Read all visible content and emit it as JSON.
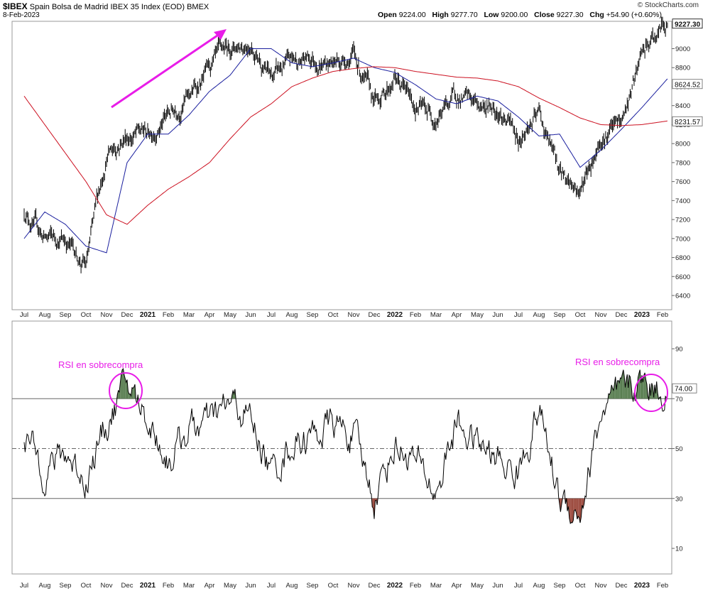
{
  "header": {
    "symbol": "$IBEX",
    "name": "Spain Bolsa de Madrid IBEX 35 Index (EOD)",
    "exchange": "BMEX",
    "date": "8-Feb-2023",
    "open_label": "Open",
    "open": "9224.00",
    "high_label": "High",
    "high": "9277.70",
    "low_label": "Low",
    "low": "9200.00",
    "close_label": "Close",
    "close": "9227.30",
    "chg_label": "Chg",
    "chg": "+54.90 (+0.60%)",
    "brand": "© StockCharts.com"
  },
  "colors": {
    "price": "#000000",
    "ma50": "#1a1f9e",
    "ma200": "#cc1020",
    "annotation": "#e81ce8",
    "rsi_overbought_fill": "#5a7f52",
    "rsi_oversold_fill": "#9c4a3e",
    "grid": "#cccccc"
  },
  "chart_data": [
    {
      "type": "line",
      "panel": "price",
      "y_ticks": [
        "6400",
        "6600",
        "6800",
        "7000",
        "7200",
        "7400",
        "7600",
        "7800",
        "8000",
        "8200",
        "8400",
        "8600",
        "8800",
        "9000"
      ],
      "ylim": [
        6300,
        9350
      ],
      "x_ticks": [
        "Jul",
        "Aug",
        "Sep",
        "Oct",
        "Nov",
        "Dec",
        "2021",
        "Feb",
        "Mar",
        "Apr",
        "May",
        "Jun",
        "Jul",
        "Aug",
        "Sep",
        "Oct",
        "Nov",
        "Dec",
        "2022",
        "Feb",
        "Mar",
        "Apr",
        "May",
        "Jun",
        "Jul",
        "Aug",
        "Sep",
        "Oct",
        "Nov",
        "Dec",
        "2023",
        "Feb"
      ],
      "last_labels": {
        "close": "9227.30",
        "ma50": "8624.52",
        "ma200": "8231.57"
      },
      "series": [
        {
          "name": "close",
          "x": [
            "2020-07",
            "2020-08",
            "2020-09",
            "2020-10",
            "2020-11",
            "2020-12",
            "2021-01",
            "2021-02",
            "2021-03",
            "2021-04",
            "2021-05",
            "2021-06",
            "2021-07",
            "2021-08",
            "2021-09",
            "2021-10",
            "2021-11",
            "2021-12",
            "2022-01",
            "2022-02",
            "2022-03",
            "2022-04",
            "2022-05",
            "2022-06",
            "2022-07",
            "2022-08",
            "2022-09",
            "2022-10",
            "2022-11",
            "2022-12",
            "2023-01",
            "2023-02"
          ],
          "values": [
            7300,
            7000,
            7000,
            6700,
            7900,
            8100,
            8100,
            8300,
            8500,
            8750,
            9000,
            9100,
            8700,
            8850,
            8900,
            8850,
            8950,
            8400,
            8700,
            8400,
            8300,
            8500,
            8400,
            8400,
            8050,
            8300,
            7700,
            7500,
            8100,
            8200,
            8900,
            9227
          ]
        },
        {
          "name": "ma50",
          "x": [
            "2020-07",
            "2020-08",
            "2020-09",
            "2020-10",
            "2020-11",
            "2020-12",
            "2021-01",
            "2021-02",
            "2021-03",
            "2021-04",
            "2021-05",
            "2021-06",
            "2021-07",
            "2021-08",
            "2021-09",
            "2021-10",
            "2021-11",
            "2021-12",
            "2022-01",
            "2022-02",
            "2022-03",
            "2022-04",
            "2022-05",
            "2022-06",
            "2022-07",
            "2022-08",
            "2022-09",
            "2022-10",
            "2022-11",
            "2022-12",
            "2023-01",
            "2023-02"
          ],
          "values": [
            7000,
            7280,
            7150,
            6920,
            6850,
            7800,
            8100,
            8100,
            8300,
            8550,
            8720,
            9000,
            9000,
            8850,
            8810,
            8850,
            8900,
            8800,
            8750,
            8620,
            8470,
            8420,
            8500,
            8450,
            8280,
            8080,
            8100,
            7750,
            7930,
            8150,
            8380,
            8624
          ]
        },
        {
          "name": "ma200",
          "x": [
            "2020-07",
            "2020-08",
            "2020-09",
            "2020-10",
            "2020-11",
            "2020-12",
            "2021-01",
            "2021-02",
            "2021-03",
            "2021-04",
            "2021-05",
            "2021-06",
            "2021-07",
            "2021-08",
            "2021-09",
            "2021-10",
            "2021-11",
            "2021-12",
            "2022-01",
            "2022-02",
            "2022-03",
            "2022-04",
            "2022-05",
            "2022-06",
            "2022-07",
            "2022-08",
            "2022-09",
            "2022-10",
            "2022-11",
            "2022-12",
            "2023-01",
            "2023-02"
          ],
          "values": [
            8500,
            8200,
            7900,
            7600,
            7250,
            7150,
            7350,
            7520,
            7650,
            7800,
            8050,
            8280,
            8420,
            8600,
            8690,
            8760,
            8790,
            8810,
            8800,
            8760,
            8730,
            8700,
            8690,
            8660,
            8600,
            8480,
            8380,
            8270,
            8200,
            8190,
            8200,
            8231
          ]
        }
      ]
    },
    {
      "type": "line",
      "panel": "rsi",
      "y_ticks": [
        "10",
        "30",
        "50",
        "70",
        "90"
      ],
      "ylim": [
        0,
        100
      ],
      "reference_lines": [
        70,
        50,
        30
      ],
      "last_label": "74.00",
      "x_ticks": [
        "Jul",
        "Aug",
        "Sep",
        "Oct",
        "Nov",
        "Dec",
        "2021",
        "Feb",
        "Mar",
        "Apr",
        "May",
        "Jun",
        "Jul",
        "Aug",
        "Sep",
        "Oct",
        "Nov",
        "Dec",
        "2022",
        "Feb",
        "Mar",
        "Apr",
        "May",
        "Jun",
        "Jul",
        "Aug",
        "Sep",
        "Oct",
        "Nov",
        "Dec",
        "2023",
        "Feb"
      ],
      "series": [
        {
          "name": "RSI",
          "x": [
            "2020-07",
            "2020-08",
            "2020-09",
            "2020-10",
            "2020-11",
            "2020-12",
            "2021-01",
            "2021-02",
            "2021-03",
            "2021-04",
            "2021-05",
            "2021-06",
            "2021-07",
            "2021-08",
            "2021-09",
            "2021-10",
            "2021-11",
            "2021-12",
            "2022-01",
            "2022-02",
            "2022-03",
            "2022-04",
            "2022-05",
            "2022-06",
            "2022-07",
            "2022-08",
            "2022-09",
            "2022-10",
            "2022-11",
            "2022-12",
            "2023-01",
            "2023-02"
          ],
          "values": [
            55,
            42,
            48,
            38,
            60,
            76,
            62,
            45,
            58,
            60,
            68,
            62,
            40,
            52,
            55,
            60,
            55,
            30,
            52,
            45,
            32,
            60,
            52,
            45,
            40,
            66,
            30,
            24,
            63,
            72,
            77,
            74
          ]
        }
      ],
      "annotations": [
        "RSI en sobrecompra",
        "RSI en sobrecompra"
      ]
    }
  ]
}
